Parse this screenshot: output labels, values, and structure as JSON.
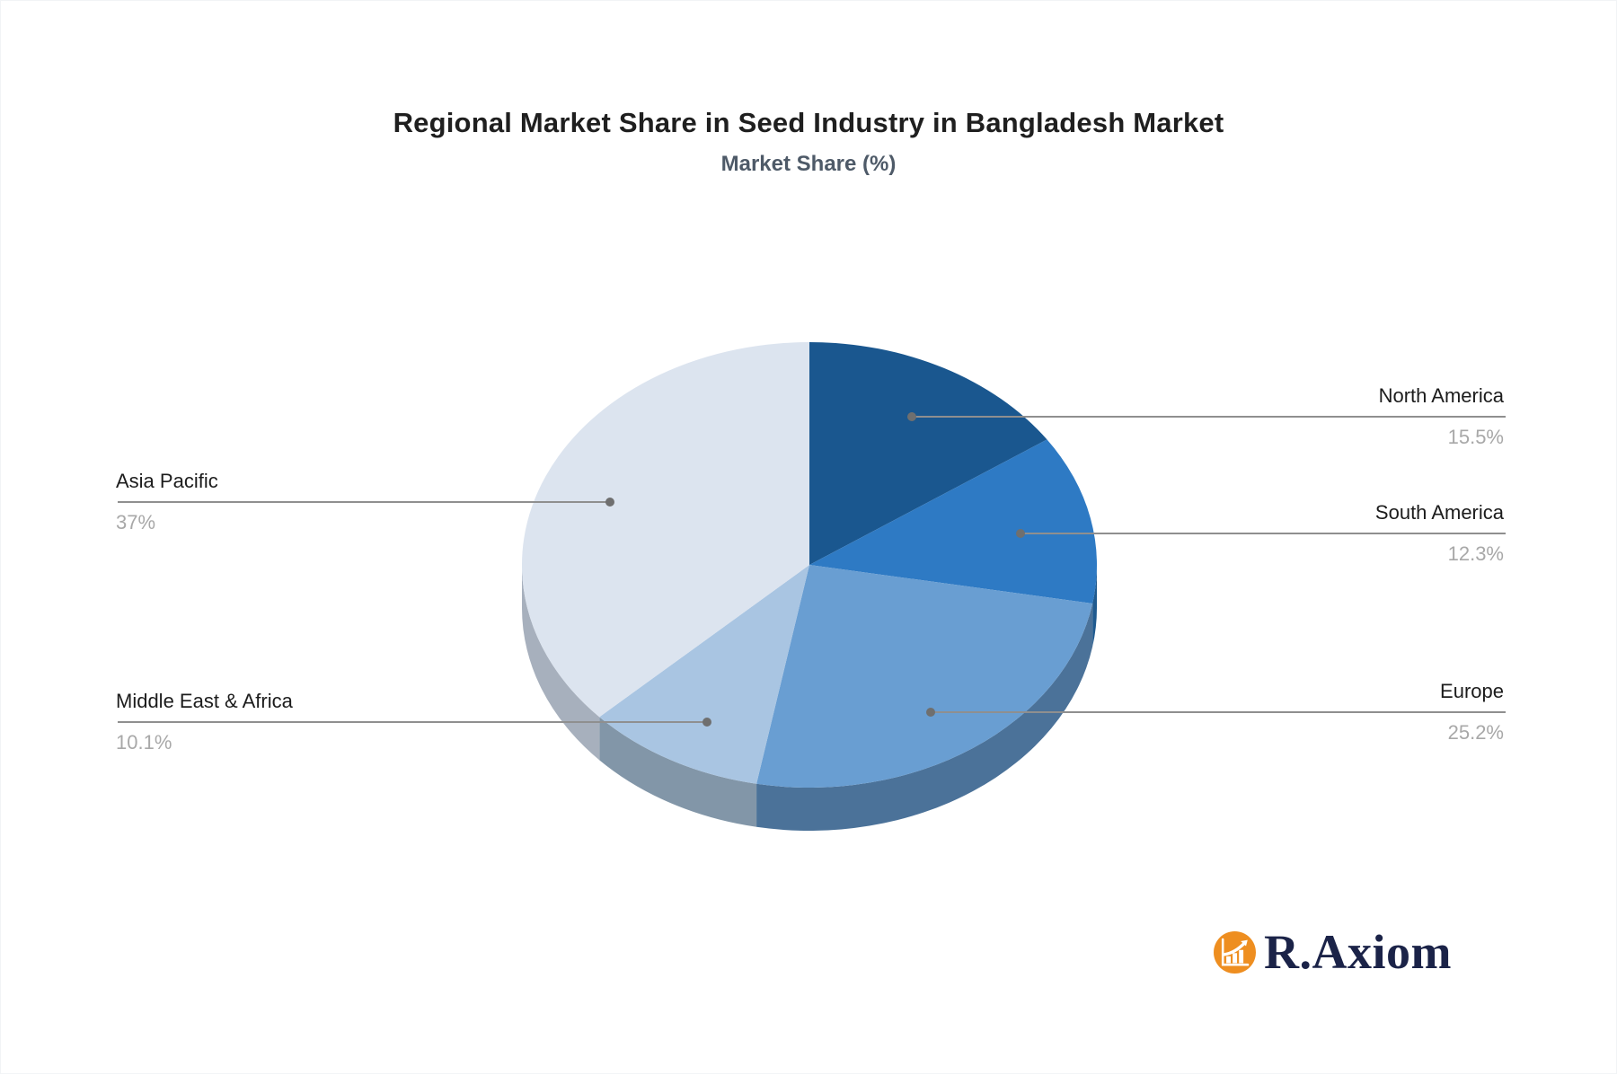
{
  "page": {
    "title": "Regional Market Share in Seed Industry in Bangladesh Market",
    "subtitle": "Market Share (%)"
  },
  "chart_data": {
    "type": "pie",
    "style": "3d-pie",
    "title": "Regional Market Share in Seed Industry in Bangladesh Market",
    "subtitle": "Market Share (%)",
    "unit": "%",
    "direction": "clockwise",
    "start_angle_deg": 0,
    "legend_position": "callout-labels",
    "series": [
      {
        "label": "North America",
        "value": 15.5,
        "display": "15.5%",
        "color": "#1A578F",
        "side_color": "#164A7C",
        "callout_side": "right"
      },
      {
        "label": "South America",
        "value": 12.3,
        "display": "12.3%",
        "color": "#2E7AC4",
        "side_color": "#1F5A8F",
        "callout_side": "right"
      },
      {
        "label": "Europe",
        "value": 25.2,
        "display": "25.2%",
        "color": "#699ED2",
        "side_color": "#4B7299",
        "callout_side": "right"
      },
      {
        "label": "Middle East & Africa",
        "value": 10.1,
        "display": "10.1%",
        "color": "#A9C5E2",
        "side_color": "#8296A8",
        "callout_side": "left"
      },
      {
        "label": "Asia Pacific",
        "value": 37,
        "display": "37%",
        "color": "#DCE4EF",
        "side_color": "#A7B0BD",
        "callout_side": "left"
      }
    ],
    "callout_line_color": "#8F8F8F",
    "callout_dot_color": "#6F6F6F"
  },
  "brand": {
    "name": "R.Axiom",
    "icon": "bar-chart-growth-icon",
    "icon_bg": "#EE8E20",
    "icon_fg": "#FFFFFF",
    "text_color": "#1B2348"
  }
}
